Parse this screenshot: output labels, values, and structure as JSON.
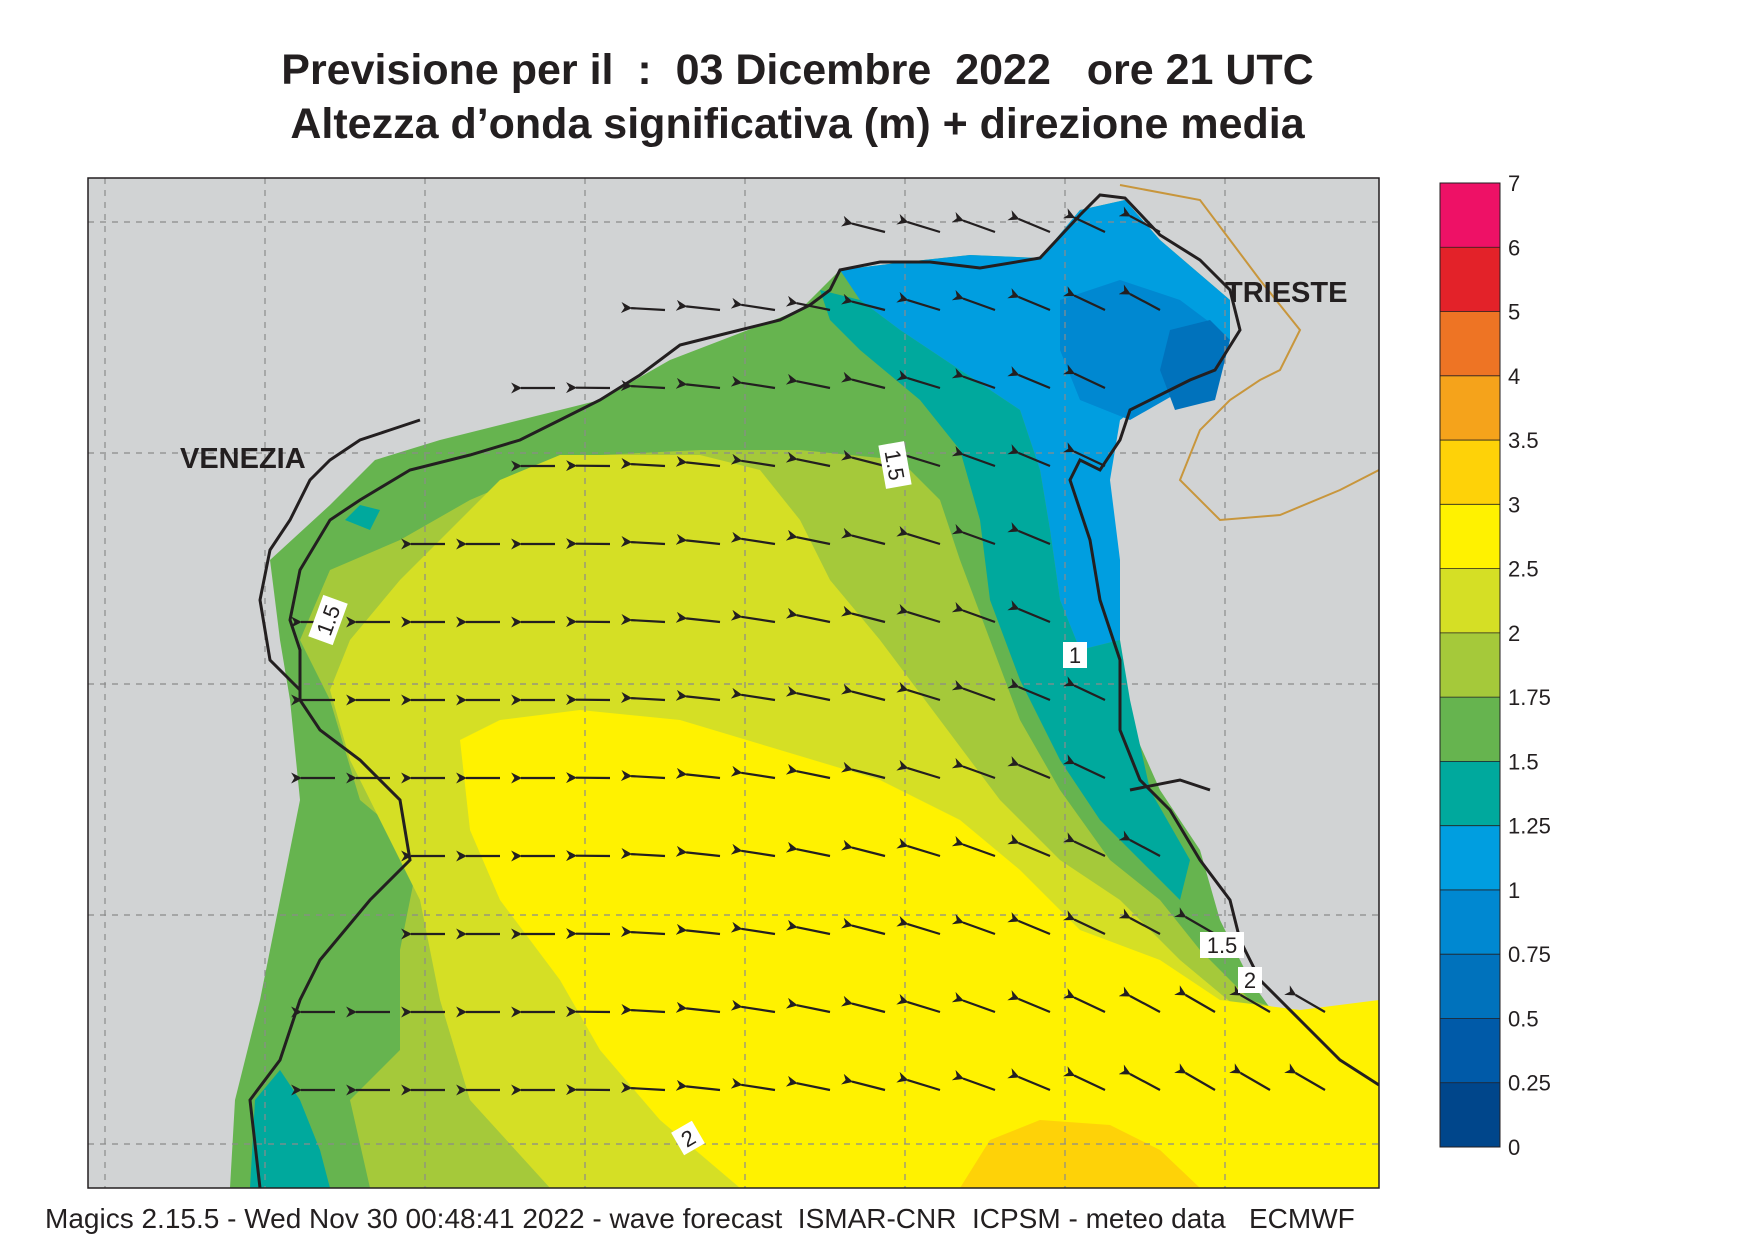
{
  "title": {
    "line1": "Previsione per il  :  03 Dicembre  2022   ore 21 UTC",
    "line2": "Altezza d’onda significativa (m) + direzione media"
  },
  "places": {
    "venezia": "VENEZIA",
    "trieste": "TRIESTE"
  },
  "contour_labels": [
    "1.5",
    "1.5",
    "1",
    "1.5",
    "2",
    "2"
  ],
  "colorbar": {
    "labels": [
      "7",
      "6",
      "5",
      "4",
      "3.5",
      "3",
      "2.5",
      "2",
      "1.75",
      "1.5",
      "1.25",
      "1",
      "0.75",
      "0.5",
      "0.25",
      "0"
    ],
    "colors": [
      "#ee1166",
      "#e32229",
      "#ee7424",
      "#f5a31b",
      "#fed208",
      "#fff200",
      "#d5df25",
      "#a5c93a",
      "#66b44f",
      "#00a99d",
      "#009ee0",
      "#0088d1",
      "#0072bc",
      "#005aa8",
      "#00468b"
    ]
  },
  "footer": "Magics 2.15.5 - Wed Nov 30 00:48:41 2022 - wave forecast  ISMAR-CNR  ICPSM - meteo data   ECMWF"
}
